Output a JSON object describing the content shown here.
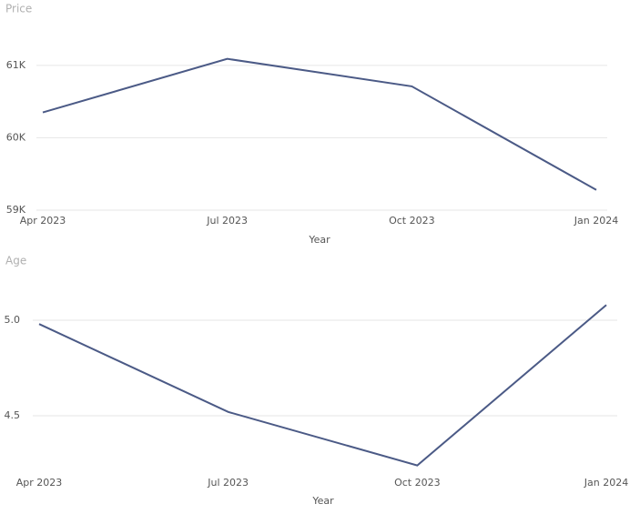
{
  "chart_data": [
    {
      "type": "line",
      "title": "Price",
      "x_label": "Year",
      "categories": [
        "Apr 2023",
        "Jul 2023",
        "Oct 2023",
        "Jan 2024"
      ],
      "series": [
        {
          "color": "#4b5a86",
          "values": [
            60350,
            61090,
            60710,
            59280
          ]
        }
      ],
      "ylim": [
        59000,
        61400
      ],
      "yticks": [
        {
          "value": 59000,
          "label": "59K"
        },
        {
          "value": 60000,
          "label": "60K"
        },
        {
          "value": 61000,
          "label": "61K"
        }
      ],
      "grid": true
    },
    {
      "type": "line",
      "title": "Age",
      "x_label": "Year",
      "categories": [
        "Apr 2023",
        "Jul 2023",
        "Oct 2023",
        "Jan 2024"
      ],
      "series": [
        {
          "color": "#4b5a86",
          "values": [
            4.98,
            4.52,
            4.24,
            5.08
          ]
        }
      ],
      "ylim": [
        4.2,
        5.2
      ],
      "yticks": [
        4.5,
        {
          "value": 5,
          "label": "5.0"
        }
      ],
      "grid": true
    }
  ]
}
